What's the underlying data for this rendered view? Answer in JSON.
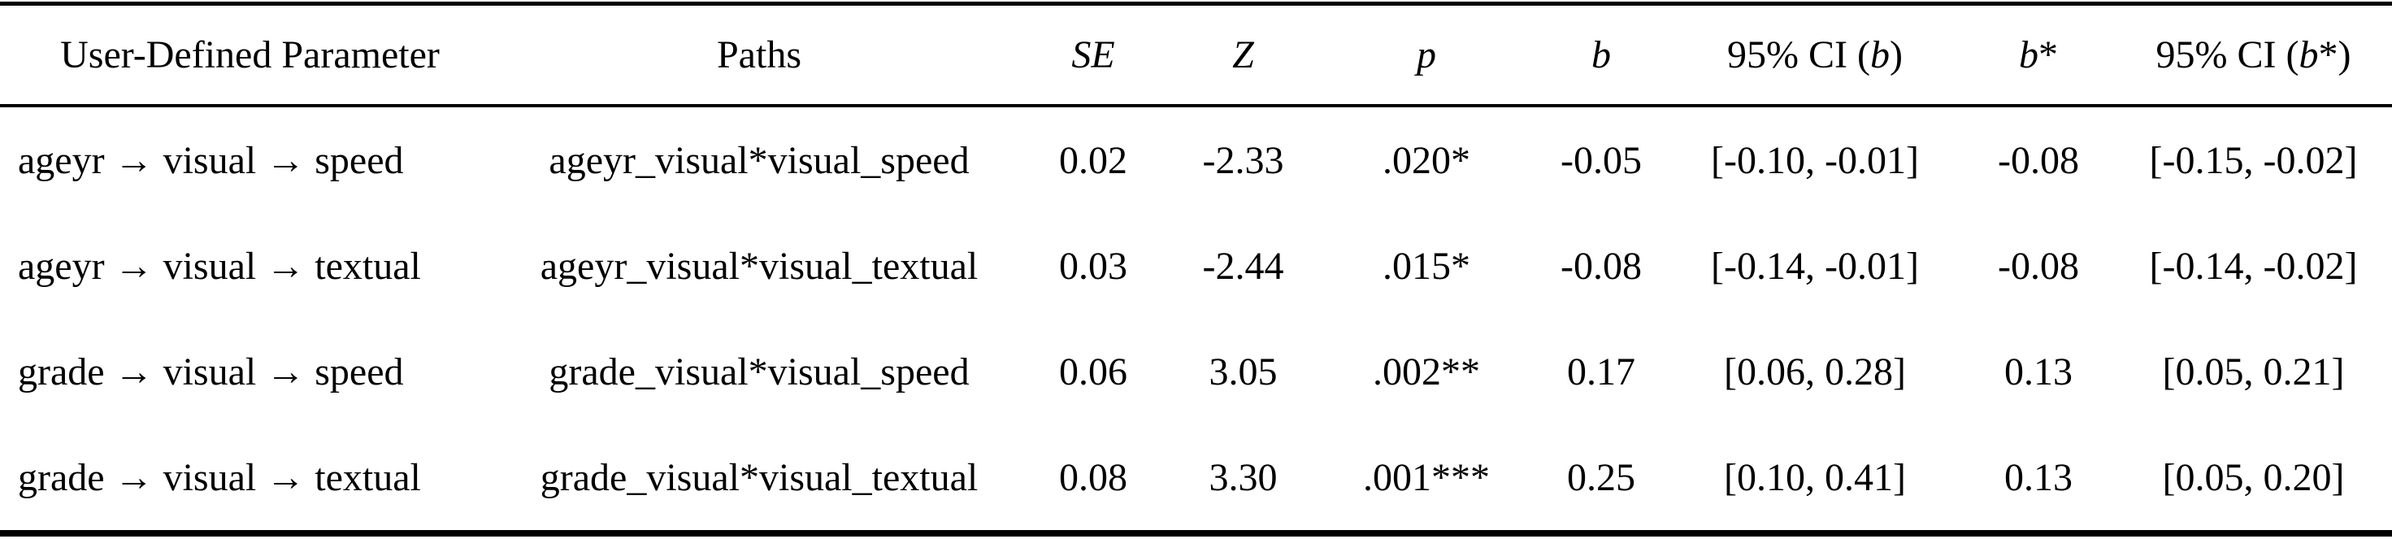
{
  "table": {
    "headers": {
      "parameter": "User-Defined Parameter",
      "paths": "Paths",
      "se": "SE",
      "z": "Z",
      "p": "p",
      "b": "b",
      "ci_b_prefix": "95% CI (",
      "ci_b_italic": "b",
      "ci_b_suffix": ")",
      "b_star_italic": "b",
      "b_star_suffix": "*",
      "ci_bstar_prefix": "95% CI (",
      "ci_bstar_italic": "b",
      "ci_bstar_suffix": "*)"
    },
    "rows": [
      [
        "ageyr → visual → speed",
        "ageyr_visual*visual_speed",
        "0.02",
        "-2.33",
        ".020*",
        "-0.05",
        "[-0.10, -0.01]",
        "-0.08",
        "[-0.15, -0.02]"
      ],
      [
        "ageyr → visual → textual",
        "ageyr_visual*visual_textual",
        "0.03",
        "-2.44",
        ".015*",
        "-0.08",
        "[-0.14, -0.01]",
        "-0.08",
        "[-0.14, -0.02]"
      ],
      [
        "grade → visual → speed",
        "grade_visual*visual_speed",
        "0.06",
        "3.05",
        ".002**",
        "0.17",
        "[0.06, 0.28]",
        "0.13",
        "[0.05, 0.21]"
      ],
      [
        "grade → visual → textual",
        "grade_visual*visual_textual",
        "0.08",
        "3.30",
        ".001***",
        "0.25",
        "[0.10, 0.41]",
        "0.13",
        "[0.05, 0.20]"
      ]
    ],
    "colors": {
      "text": "#000000",
      "background": "#ffffff",
      "rule": "#000000"
    }
  }
}
